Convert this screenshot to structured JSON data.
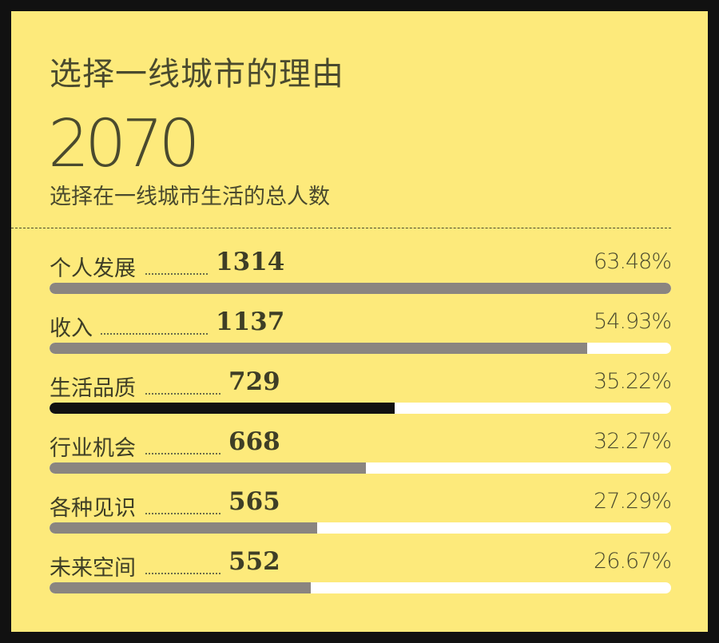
{
  "title": "选择一线城市的理由",
  "total": "2070",
  "total_label": "选择在一线城市生活的总人数",
  "colors": {
    "background": "#fdea7b",
    "border": "#111111",
    "bar_default": "#8a8580",
    "bar_highlight": "#111111",
    "track": "#ffffff",
    "text": "#4a4a2e"
  },
  "chart_data": {
    "type": "bar",
    "orientation": "horizontal",
    "title": "选择一线城市的理由",
    "total": 2070,
    "categories": [
      "个人发展",
      "收入",
      "生活品质",
      "行业机会",
      "各种见识",
      "未来空间"
    ],
    "values": [
      1314,
      1137,
      729,
      668,
      565,
      552
    ],
    "percent_labels": [
      "63.48%",
      "54.93%",
      "35.22%",
      "32.27%",
      "27.29%",
      "26.67%"
    ],
    "bar_fraction": [
      1.0,
      0.8653,
      0.5548,
      0.5084,
      0.43,
      0.4201
    ],
    "highlight_index": 2
  }
}
